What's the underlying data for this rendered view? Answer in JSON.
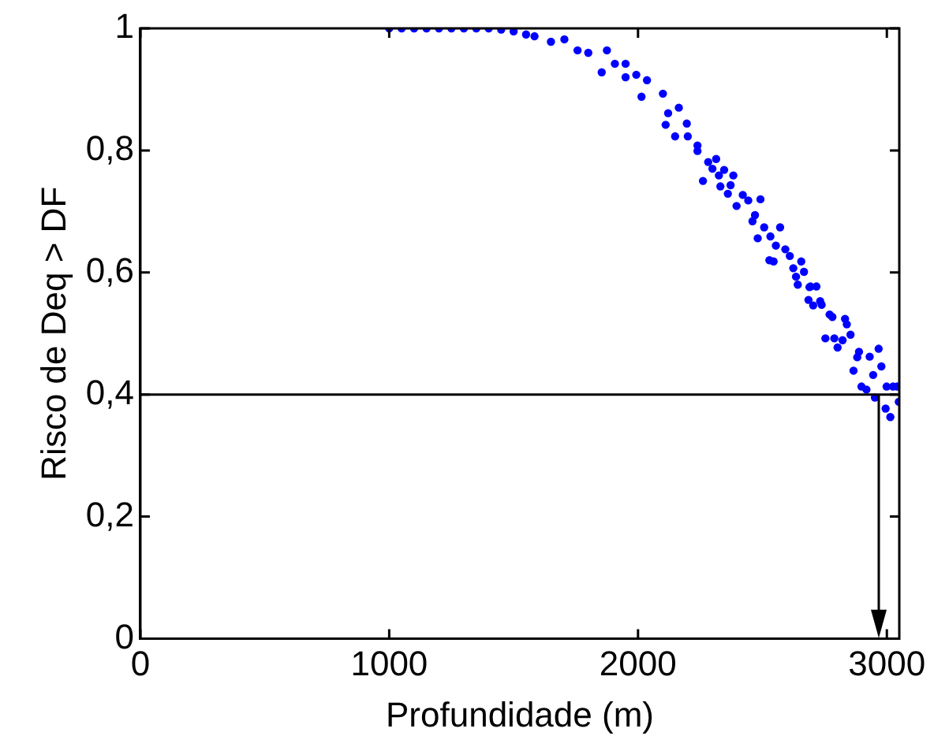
{
  "chart_data": {
    "type": "scatter",
    "xlabel": "Profundidade (m)",
    "ylabel": "Risco de Deq > DF",
    "xlim": [
      0,
      3050
    ],
    "xticks": [
      0,
      1000,
      2000,
      3000
    ],
    "ylim": [
      0,
      1
    ],
    "yticks": [
      0,
      {
        "value": 0.2,
        "label": "0,2"
      },
      {
        "value": 0.4,
        "label": "0,4"
      },
      {
        "value": 0.6,
        "label": "0,6"
      },
      {
        "value": 0.8,
        "label": "0,8"
      },
      1
    ],
    "grid": false,
    "legend": false,
    "marker": "circle",
    "ref_lines": [
      {
        "axis": "y",
        "value": 0.4,
        "color": "#000000"
      },
      {
        "axis": "x",
        "value": 2970,
        "color": "#000000"
      }
    ],
    "series": [
      {
        "color": "#0000ff",
        "x": [
          1000,
          1050,
          1100,
          1150,
          1200,
          1250,
          1300,
          1350,
          1400,
          1450,
          1500,
          1550,
          1584,
          1650,
          1704,
          1757,
          1800,
          1875,
          1854,
          1907,
          1950,
          1950,
          1993,
          2014,
          2036,
          2100,
          2121,
          2164,
          2111,
          2196,
          2149,
          2200,
          2239,
          2239,
          2282,
          2314,
          2299,
          2346,
          2325,
          2383,
          2261,
          2331,
          2372,
          2361,
          2421,
          2443,
          2492,
          2396,
          2470,
          2460,
          2507,
          2571,
          2481,
          2532,
          2554,
          2592,
          2610,
          2528,
          2656,
          2624,
          2667,
          2635,
          2642,
          2689,
          2685,
          2545,
          2693,
          2717,
          2732,
          2704,
          2738,
          2770,
          2781,
          2832,
          2839,
          2753,
          2789,
          2822,
          2854,
          2802,
          2888,
          2881,
          2931,
          2967,
          2866,
          2978,
          2945,
          2898,
          2918,
          2999,
          3025,
          3042,
          2952,
          2995,
          3048,
          3014
        ],
        "values": [
          1,
          1,
          1,
          1,
          1,
          1,
          1,
          1,
          1,
          0.998,
          0.995,
          0.99,
          0.987,
          0.978,
          0.982,
          0.964,
          0.96,
          0.964,
          0.928,
          0.942,
          0.942,
          0.92,
          0.924,
          0.888,
          0.915,
          0.893,
          0.861,
          0.87,
          0.842,
          0.844,
          0.823,
          0.823,
          0.808,
          0.799,
          0.781,
          0.786,
          0.77,
          0.768,
          0.759,
          0.759,
          0.75,
          0.741,
          0.743,
          0.729,
          0.727,
          0.718,
          0.72,
          0.709,
          0.694,
          0.684,
          0.674,
          0.674,
          0.656,
          0.659,
          0.644,
          0.638,
          0.627,
          0.62,
          0.618,
          0.607,
          0.601,
          0.593,
          0.58,
          0.576,
          0.555,
          0.618,
          0.577,
          0.577,
          0.553,
          0.546,
          0.547,
          0.531,
          0.527,
          0.524,
          0.515,
          0.492,
          0.492,
          0.489,
          0.498,
          0.477,
          0.47,
          0.461,
          0.462,
          0.475,
          0.439,
          0.446,
          0.432,
          0.413,
          0.408,
          0.413,
          0.413,
          0.413,
          0.395,
          0.377,
          0.388,
          0.363
        ]
      }
    ]
  }
}
